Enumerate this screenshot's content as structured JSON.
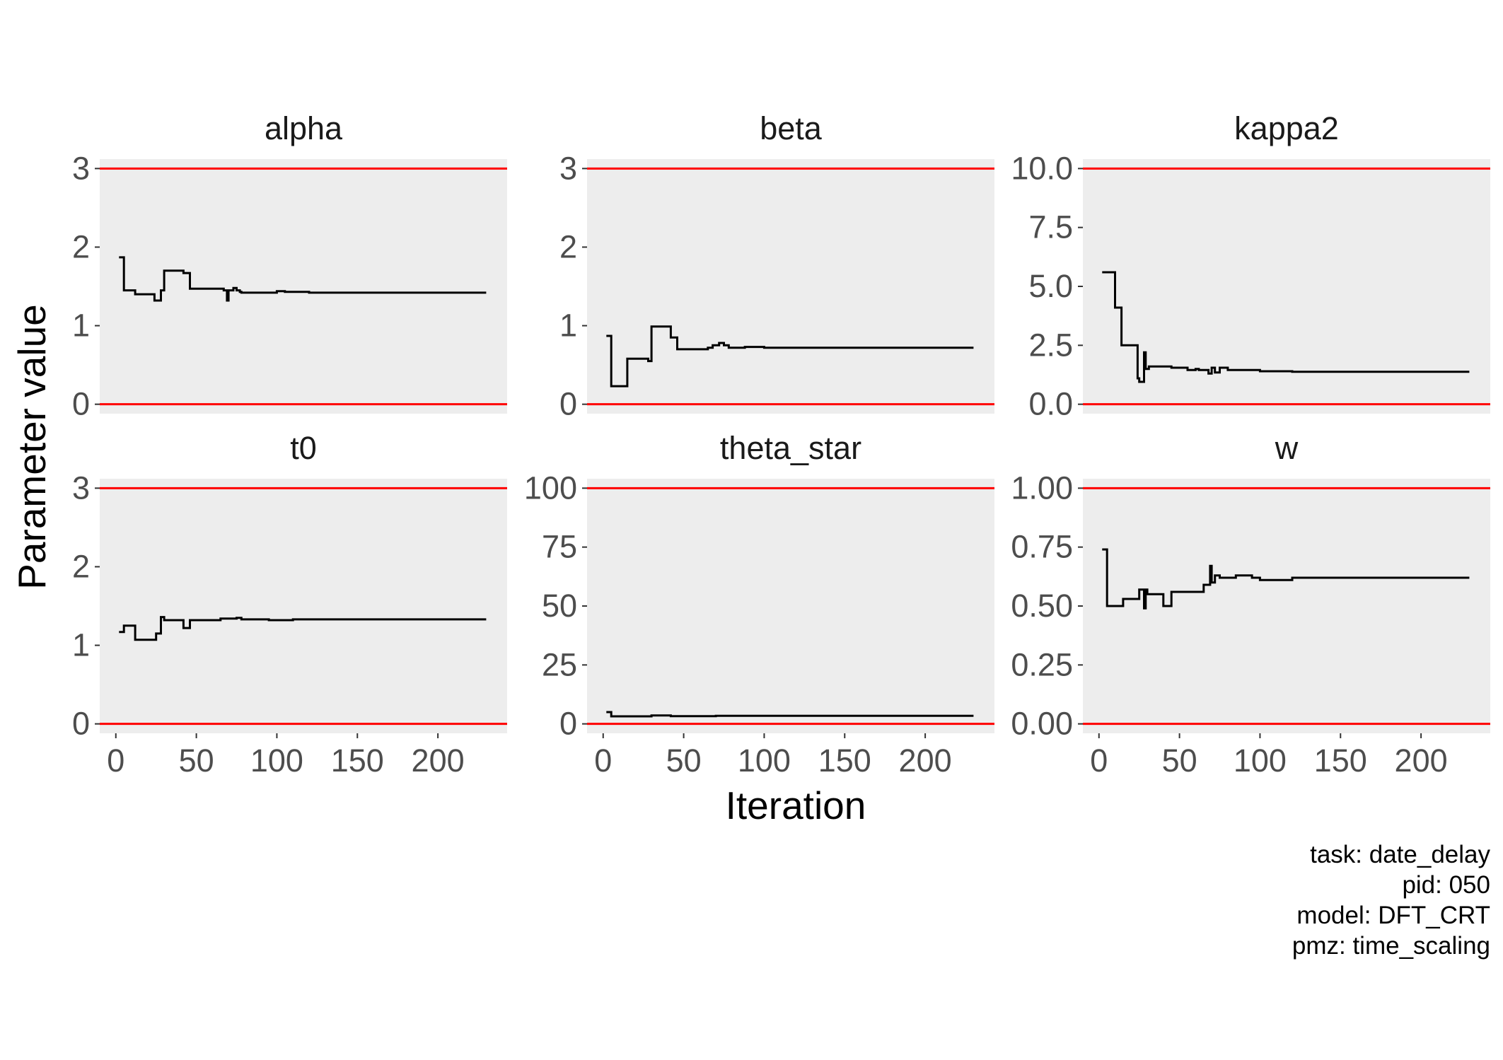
{
  "chart_data": {
    "type": "line",
    "xlabel": "Iteration",
    "ylabel": "Parameter value",
    "x_ticks": [
      0,
      50,
      100,
      150,
      200
    ],
    "xlim": [
      -10,
      243
    ],
    "grid": false,
    "colors": {
      "trace": "#000000",
      "bounds": "#ff0000",
      "panel_bg": "#ededed"
    },
    "caption": [
      "task: date_delay",
      "pid: 050",
      "model: DFT_CRT",
      "pmz: time_scaling"
    ],
    "panels": [
      {
        "name": "alpha",
        "ylim": [
          -0.12,
          3.12
        ],
        "y_ticks": [
          0,
          1,
          2,
          3
        ],
        "y_tick_labels": [
          "0",
          "1",
          "2",
          "3"
        ],
        "bounds": [
          0,
          3
        ],
        "x": [
          2,
          5,
          5,
          12,
          12,
          24,
          24,
          28,
          28,
          30,
          30,
          42,
          42,
          46,
          46,
          67,
          67,
          69,
          69,
          70,
          70,
          73,
          73,
          75,
          75,
          77,
          77,
          78,
          78,
          100,
          100,
          105,
          105,
          120,
          120,
          130,
          130,
          230
        ],
        "y": [
          1.87,
          1.87,
          1.45,
          1.45,
          1.4,
          1.4,
          1.32,
          1.32,
          1.45,
          1.45,
          1.7,
          1.7,
          1.67,
          1.67,
          1.47,
          1.47,
          1.45,
          1.45,
          1.32,
          1.32,
          1.45,
          1.45,
          1.48,
          1.48,
          1.45,
          1.45,
          1.43,
          1.43,
          1.42,
          1.42,
          1.44,
          1.44,
          1.43,
          1.43,
          1.42,
          1.42,
          1.42,
          1.42
        ]
      },
      {
        "name": "beta",
        "ylim": [
          -0.12,
          3.12
        ],
        "y_ticks": [
          0,
          1,
          2,
          3
        ],
        "y_tick_labels": [
          "0",
          "1",
          "2",
          "3"
        ],
        "bounds": [
          0,
          3
        ],
        "x": [
          2,
          5,
          5,
          15,
          15,
          28,
          28,
          30,
          30,
          42,
          42,
          46,
          46,
          65,
          65,
          68,
          68,
          72,
          72,
          75,
          75,
          78,
          78,
          88,
          88,
          100,
          100,
          105,
          105,
          230
        ],
        "y": [
          0.87,
          0.87,
          0.23,
          0.23,
          0.58,
          0.58,
          0.55,
          0.55,
          0.99,
          0.99,
          0.85,
          0.85,
          0.7,
          0.7,
          0.72,
          0.72,
          0.75,
          0.75,
          0.78,
          0.78,
          0.75,
          0.75,
          0.72,
          0.72,
          0.73,
          0.73,
          0.72,
          0.72,
          0.72,
          0.72
        ]
      },
      {
        "name": "kappa2",
        "ylim": [
          -0.4,
          10.4
        ],
        "y_ticks": [
          0,
          2.5,
          5,
          7.5,
          10
        ],
        "y_tick_labels": [
          "0.0",
          "2.5",
          "5.0",
          "7.5",
          "10.0"
        ],
        "bounds": [
          0,
          10
        ],
        "x": [
          2,
          10,
          10,
          14,
          14,
          24,
          24,
          25,
          25,
          28,
          28,
          29,
          29,
          31,
          31,
          45,
          45,
          55,
          55,
          60,
          60,
          62,
          62,
          68,
          68,
          70,
          70,
          72,
          72,
          75,
          75,
          80,
          80,
          100,
          100,
          120,
          120,
          230
        ],
        "y": [
          5.6,
          5.6,
          4.1,
          4.1,
          2.5,
          2.5,
          1.1,
          1.1,
          0.95,
          0.95,
          2.2,
          2.2,
          1.5,
          1.5,
          1.6,
          1.6,
          1.55,
          1.55,
          1.45,
          1.45,
          1.5,
          1.5,
          1.45,
          1.45,
          1.3,
          1.3,
          1.55,
          1.55,
          1.35,
          1.35,
          1.55,
          1.55,
          1.45,
          1.45,
          1.4,
          1.4,
          1.38,
          1.38
        ]
      },
      {
        "name": "t0",
        "ylim": [
          -0.12,
          3.12
        ],
        "y_ticks": [
          0,
          1,
          2,
          3
        ],
        "y_tick_labels": [
          "0",
          "1",
          "2",
          "3"
        ],
        "bounds": [
          0,
          3
        ],
        "x": [
          2,
          5,
          5,
          12,
          12,
          25,
          25,
          28,
          28,
          30,
          30,
          42,
          42,
          46,
          46,
          65,
          65,
          75,
          75,
          78,
          78,
          95,
          95,
          110,
          110,
          230
        ],
        "y": [
          1.17,
          1.17,
          1.25,
          1.25,
          1.07,
          1.07,
          1.15,
          1.15,
          1.36,
          1.36,
          1.32,
          1.32,
          1.22,
          1.22,
          1.32,
          1.32,
          1.34,
          1.34,
          1.35,
          1.35,
          1.33,
          1.33,
          1.32,
          1.32,
          1.33,
          1.33
        ]
      },
      {
        "name": "theta_star",
        "ylim": [
          -4,
          104
        ],
        "y_ticks": [
          0,
          25,
          50,
          75,
          100
        ],
        "y_tick_labels": [
          "0",
          "25",
          "50",
          "75",
          "100"
        ],
        "bounds": [
          0,
          100
        ],
        "x": [
          2,
          5,
          5,
          30,
          30,
          42,
          42,
          70,
          70,
          230
        ],
        "y": [
          5.0,
          5.0,
          3.2,
          3.2,
          3.6,
          3.6,
          3.3,
          3.3,
          3.4,
          3.4
        ]
      },
      {
        "name": "w",
        "ylim": [
          -0.04,
          1.04
        ],
        "y_ticks": [
          0,
          0.25,
          0.5,
          0.75,
          1
        ],
        "y_tick_labels": [
          "0.00",
          "0.25",
          "0.50",
          "0.75",
          "1.00"
        ],
        "bounds": [
          0,
          1
        ],
        "x": [
          2,
          5,
          5,
          15,
          15,
          25,
          25,
          28,
          28,
          29,
          29,
          30,
          30,
          40,
          40,
          45,
          45,
          65,
          65,
          69,
          69,
          70,
          70,
          72,
          72,
          75,
          75,
          85,
          85,
          95,
          95,
          100,
          100,
          120,
          120,
          230
        ],
        "y": [
          0.74,
          0.74,
          0.5,
          0.5,
          0.53,
          0.53,
          0.57,
          0.57,
          0.49,
          0.49,
          0.57,
          0.57,
          0.55,
          0.55,
          0.5,
          0.5,
          0.56,
          0.56,
          0.59,
          0.59,
          0.67,
          0.67,
          0.6,
          0.6,
          0.63,
          0.63,
          0.62,
          0.62,
          0.63,
          0.63,
          0.62,
          0.62,
          0.61,
          0.61,
          0.62,
          0.62
        ]
      }
    ]
  }
}
